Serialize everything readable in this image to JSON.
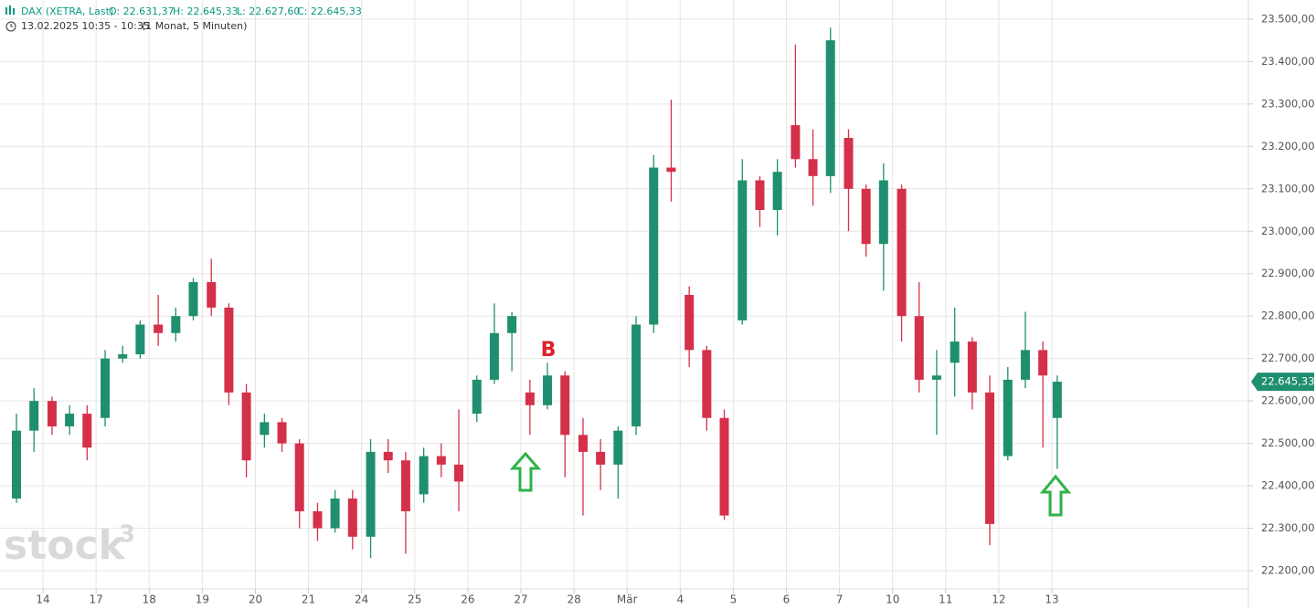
{
  "header": {
    "instrument": "DAX (XETRA, Last)",
    "open": "O: 22.631,37",
    "high": "H: 22.645,33",
    "low": "L: 22.627,60",
    "close": "C: 22.645,33",
    "time": "13.02.2025 10:35 - 10:35",
    "period": "(1 Monat, 5 Minuten)"
  },
  "watermark": {
    "text": "stock",
    "sup": "3"
  },
  "chart_data": {
    "type": "candlestick",
    "up_color": "#1f8f6f",
    "down_color": "#d5304a",
    "grid": true,
    "x": [
      0.5,
      0.83,
      1.17,
      1.5,
      1.83,
      2.17,
      2.5,
      2.83,
      3.17,
      3.5,
      3.83,
      4.17,
      4.5,
      4.83,
      5.17,
      5.5,
      5.83,
      6.17,
      6.5,
      6.83,
      7.17,
      7.5,
      7.83,
      8.17,
      8.5,
      8.83,
      9.17,
      9.5,
      9.83,
      10.17,
      10.5,
      10.83,
      11.17,
      11.5,
      11.83,
      12.17,
      12.5,
      12.83,
      13.17,
      13.5,
      13.83,
      14.17,
      14.5,
      14.83,
      15.17,
      15.5,
      15.83,
      16.17,
      16.5,
      16.83,
      17.17,
      17.5,
      17.83,
      18.17,
      18.5,
      18.83,
      19.17,
      19.5,
      19.83,
      20.1
    ],
    "open": [
      22370,
      22530,
      22600,
      22540,
      22570,
      22560,
      22700,
      22710,
      22780,
      22760,
      22800,
      22880,
      22820,
      22620,
      22520,
      22550,
      22500,
      22340,
      22300,
      22370,
      22280,
      22480,
      22460,
      22380,
      22470,
      22450,
      22570,
      22650,
      22760,
      22620,
      22590,
      22660,
      22520,
      22480,
      22450,
      22540,
      22780,
      23150,
      22850,
      22720,
      22560,
      22790,
      23120,
      23050,
      23250,
      23170,
      23130,
      23220,
      23100,
      22970,
      23100,
      22800,
      22650,
      22690,
      22740,
      22620,
      22470,
      22650,
      22720,
      22560
    ],
    "high": [
      22570,
      22630,
      22610,
      22590,
      22590,
      22720,
      22730,
      22790,
      22850,
      22820,
      22890,
      22935,
      22830,
      22640,
      22570,
      22560,
      22510,
      22360,
      22390,
      22390,
      22510,
      22510,
      22480,
      22490,
      22500,
      22580,
      22660,
      22830,
      22810,
      22650,
      22690,
      22670,
      22560,
      22510,
      22540,
      22800,
      23180,
      23310,
      22870,
      22730,
      22580,
      23170,
      23130,
      23170,
      23440,
      23240,
      23480,
      23240,
      23110,
      23160,
      23110,
      22880,
      22720,
      22820,
      22750,
      22660,
      22680,
      22810,
      22740,
      22660
    ],
    "low": [
      22360,
      22480,
      22520,
      22520,
      22460,
      22540,
      22690,
      22700,
      22730,
      22740,
      22790,
      22800,
      22590,
      22420,
      22490,
      22480,
      22300,
      22270,
      22290,
      22250,
      22230,
      22430,
      22240,
      22360,
      22420,
      22340,
      22550,
      22640,
      22670,
      22520,
      22580,
      22420,
      22330,
      22390,
      22370,
      22520,
      22760,
      23070,
      22680,
      22530,
      22320,
      22780,
      23010,
      22990,
      23150,
      23060,
      23090,
      23000,
      22940,
      22860,
      22740,
      22620,
      22520,
      22610,
      22580,
      22260,
      22460,
      22630,
      22490,
      22440
    ],
    "close": [
      22530,
      22600,
      22540,
      22570,
      22490,
      22700,
      22710,
      22780,
      22760,
      22800,
      22880,
      22820,
      22620,
      22460,
      22550,
      22500,
      22340,
      22300,
      22370,
      22280,
      22480,
      22460,
      22340,
      22470,
      22450,
      22410,
      22650,
      22760,
      22800,
      22590,
      22660,
      22520,
      22480,
      22450,
      22530,
      22780,
      23150,
      23140,
      22720,
      22560,
      22330,
      23120,
      23050,
      23140,
      23170,
      23130,
      23450,
      23100,
      22970,
      23120,
      22800,
      22650,
      22660,
      22740,
      22620,
      22310,
      22650,
      22720,
      22660,
      22645.33
    ],
    "xlim": [
      0.19,
      23.7
    ],
    "xticks": [
      {
        "value": 1,
        "label": "14"
      },
      {
        "value": 2,
        "label": "17"
      },
      {
        "value": 3,
        "label": "18"
      },
      {
        "value": 4,
        "label": "19"
      },
      {
        "value": 5,
        "label": "20"
      },
      {
        "value": 6,
        "label": "21"
      },
      {
        "value": 7,
        "label": "24"
      },
      {
        "value": 8,
        "label": "25"
      },
      {
        "value": 9,
        "label": "26"
      },
      {
        "value": 10,
        "label": "27"
      },
      {
        "value": 11,
        "label": "28"
      },
      {
        "value": 12,
        "label": "Mär"
      },
      {
        "value": 13,
        "label": "4"
      },
      {
        "value": 14,
        "label": "5"
      },
      {
        "value": 15,
        "label": "6"
      },
      {
        "value": 16,
        "label": "7"
      },
      {
        "value": 17,
        "label": "10"
      },
      {
        "value": 18,
        "label": "11"
      },
      {
        "value": 19,
        "label": "12"
      },
      {
        "value": 20,
        "label": "13"
      }
    ],
    "ylim": [
      22157,
      23545
    ],
    "yticks": [
      {
        "value": 22200,
        "label": "22.200,00"
      },
      {
        "value": 22300,
        "label": "22.300,00"
      },
      {
        "value": 22400,
        "label": "22.400,00"
      },
      {
        "value": 22500,
        "label": "22.500,00"
      },
      {
        "value": 22600,
        "label": "22.600,00"
      },
      {
        "value": 22700,
        "label": "22.700,00"
      },
      {
        "value": 22800,
        "label": "22.800,00"
      },
      {
        "value": 22900,
        "label": "22.900,00"
      },
      {
        "value": 23000,
        "label": "23.000,00"
      },
      {
        "value": 23100,
        "label": "23.100,00"
      },
      {
        "value": 23200,
        "label": "23.200,00"
      },
      {
        "value": 23300,
        "label": "23.300,00"
      },
      {
        "value": 23400,
        "label": "23.400,00"
      },
      {
        "value": 23500,
        "label": "23.500,00"
      }
    ],
    "last_price": {
      "value": 22645.33,
      "label": "22.645,33",
      "color": "#1f8f6f"
    },
    "annotation": {
      "text": "B",
      "color": "#e0202a"
    }
  }
}
